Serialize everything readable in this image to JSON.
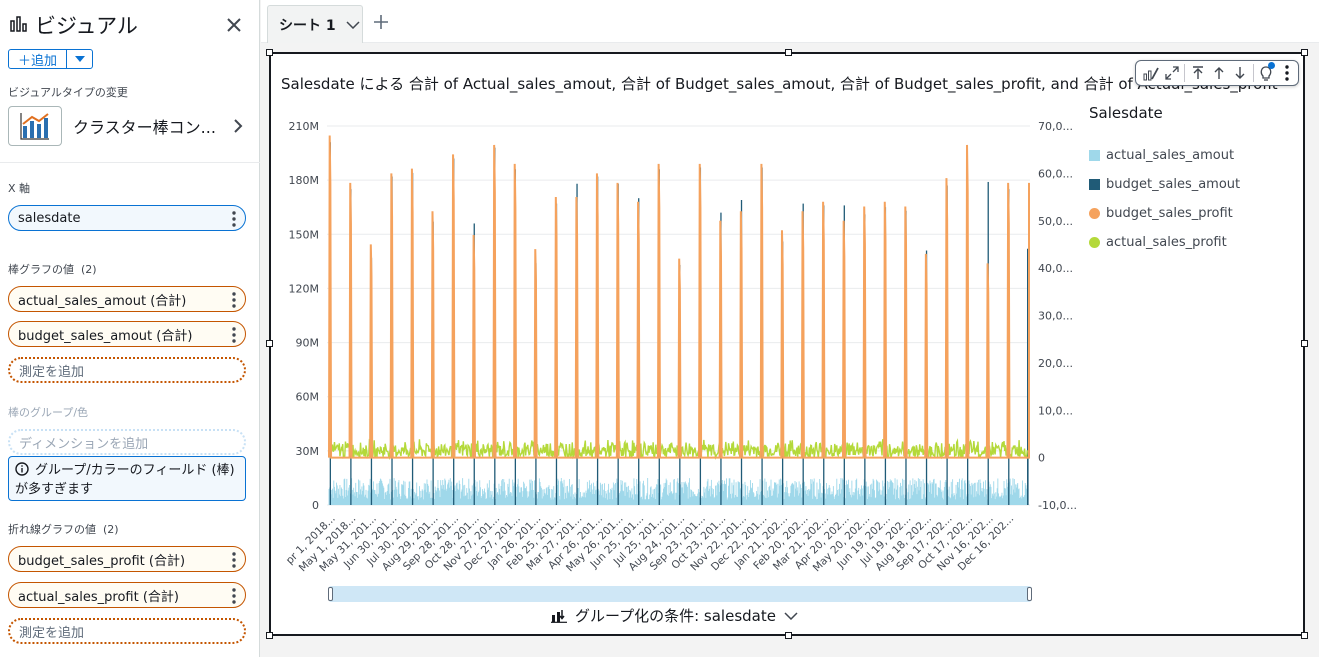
{
  "panel": {
    "title": "ビジュアル",
    "add_label": "追加",
    "visual_type_label": "ビジュアルタイプの変更",
    "visual_type_name": "クラスター棒コン...",
    "x_axis_label": "X 軸",
    "x_axis_field": "salesdate",
    "bar_values_label": "棒グラフの値",
    "bar_values_count": "(2)",
    "bar_fields": [
      "actual_sales_amout (合計)",
      "budget_sales_amout (合計)"
    ],
    "add_measure": "測定を追加",
    "group_color_label": "棒のグループ/色",
    "add_dimension": "ディメンションを追加",
    "info_line1": "グループ/カラーのフィールド (棒)",
    "info_line2": "が多すぎます",
    "line_values_label": "折れ線グラフの値",
    "line_values_count": "(2)",
    "line_fields": [
      "budget_sales_profit (合計)",
      "actual_sales_profit (合計)"
    ]
  },
  "tabs": [
    {
      "label": "シート 1"
    }
  ],
  "visual": {
    "title": "Salesdate による 合計 of Actual_sales_amout, 合計 of Budget_sales_amout, 合計 of Budget_sales_profit, and 合計 of Actual_sales_profit",
    "group_by": "グループ化の条件: salesdate"
  },
  "colors": {
    "actual_sales_amout": "#9fd8ea",
    "budget_sales_amout": "#205b77",
    "budget_sales_profit": "#f5a25d",
    "actual_sales_profit": "#b4d93a",
    "accent": "#0972d3"
  },
  "chart_data": {
    "type": "bar",
    "title": "Salesdate による 合計 of Actual_sales_amout, 合計 of Budget_sales_amout, 合計 of Budget_sales_profit, and 合計 of Actual_sales_profit",
    "legend_title": "Salesdate",
    "legend": [
      "actual_sales_amout",
      "budget_sales_amout",
      "budget_sales_profit",
      "actual_sales_profit"
    ],
    "legend_position": "right",
    "left_axis": {
      "ticks": [
        "0",
        "30M",
        "60M",
        "90M",
        "120M",
        "150M",
        "180M",
        "210M"
      ],
      "range": [
        0,
        210
      ]
    },
    "right_axis": {
      "ticks": [
        "-10,0...",
        "0",
        "10,0...",
        "20,0...",
        "30,0...",
        "40,0...",
        "50,0...",
        "60,0...",
        "70,0..."
      ],
      "range": [
        -10,
        70
      ]
    },
    "x_tick_labels": [
      "pr 1, 2018...",
      "May 1, 2018...",
      "May 31, 201...",
      "Jun 30, 201...",
      "Jul 30, 201...",
      "Aug 29, 201...",
      "Sep 28, 201...",
      "Oct 28, 201...",
      "Nov 27, 201...",
      "Dec 27, 201...",
      "Jan 26, 201...",
      "Feb 25, 201...",
      "Mar 27, 201...",
      "Apr 26, 201...",
      "May 26, 201...",
      "Jun 25, 201...",
      "Jul 25, 201...",
      "Aug 24, 201...",
      "Sep 23, 201...",
      "Oct 23, 201...",
      "Nov 22, 201...",
      "Dec 22, 201...",
      "Jan 21, 202...",
      "Feb 20, 202...",
      "Mar 21, 202...",
      "Apr 20, 202...",
      "May 20, 202...",
      "Jun 19, 202...",
      "Jul 19, 202...",
      "Aug 18, 202...",
      "Sep 17, 202...",
      "Oct 17, 202...",
      "Nov 16, 202...",
      "Dec 16, 202..."
    ],
    "monthly_budget_sales_profit_peaks": [
      68,
      58,
      45,
      60,
      61,
      52,
      64,
      47,
      66,
      62,
      44,
      55,
      55,
      60,
      58,
      54,
      62,
      42,
      62,
      50,
      52,
      62,
      48,
      52,
      54,
      50,
      53,
      54,
      53,
      43,
      59,
      66,
      41,
      58
    ],
    "monthly_budget_sales_amout_peaks": [
      201,
      175,
      137,
      182,
      184,
      157,
      192,
      156,
      198,
      186,
      134,
      167,
      178,
      182,
      178,
      170,
      186,
      133,
      187,
      162,
      169,
      187,
      146,
      167,
      166,
      166,
      161,
      165,
      163,
      141,
      177,
      178,
      179,
      175
    ],
    "actual_sales_amout_daily_range_M": [
      3,
      15
    ],
    "actual_sales_profit_daily_range": [
      0,
      4
    ]
  }
}
